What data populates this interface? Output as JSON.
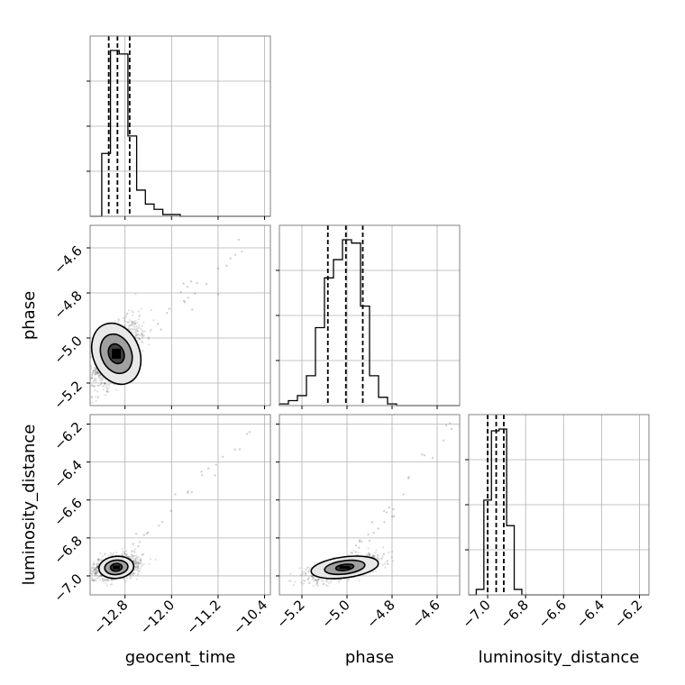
{
  "chart_data": {
    "type": "corner",
    "parameters": [
      {
        "name": "geocent_time",
        "label": "geocent_time",
        "range": [
          -13.4,
          -10.3
        ],
        "ticks": [
          -12.8,
          -12.0,
          -11.2,
          -10.4
        ],
        "tick_labels": [
          "−12.8",
          "−12.0",
          "−11.2",
          "−10.4"
        ],
        "quantiles": [
          -13.08,
          -12.93,
          -12.72
        ],
        "hist": {
          "bin_edges": [
            -13.4,
            -13.2,
            -13.05,
            -12.9,
            -12.75,
            -12.6,
            -12.45,
            -12.3,
            -12.15,
            -12.0,
            -11.85,
            -11.7
          ],
          "counts": [
            0.0,
            0.36,
            0.95,
            0.93,
            0.46,
            0.15,
            0.07,
            0.04,
            0.01,
            0.01,
            0.0
          ]
        }
      },
      {
        "name": "phase",
        "label": "phase",
        "range": [
          -5.3,
          -4.5
        ],
        "ticks": [
          -5.2,
          -5.0,
          -4.8,
          -4.6
        ],
        "tick_labels": [
          "−5.2",
          "−5.0",
          "−4.8",
          "−4.6"
        ],
        "quantiles": [
          -5.085,
          -5.005,
          -4.93
        ],
        "hist": {
          "bin_edges": [
            -5.3,
            -5.26,
            -5.22,
            -5.18,
            -5.14,
            -5.1,
            -5.06,
            -5.02,
            -4.98,
            -4.94,
            -4.9,
            -4.86,
            -4.82,
            -4.78,
            -4.74
          ],
          "counts": [
            0.01,
            0.03,
            0.06,
            0.18,
            0.47,
            0.77,
            0.88,
            1.0,
            0.98,
            0.6,
            0.18,
            0.05,
            0.01,
            0.0
          ]
        }
      },
      {
        "name": "luminosity_distance",
        "label": "luminosity_distance",
        "range": [
          -7.1,
          -6.15
        ],
        "ticks": [
          -7.0,
          -6.8,
          -6.6,
          -6.4,
          -6.2
        ],
        "tick_labels": [
          "−7.0",
          "−6.8",
          "−6.6",
          "−6.4",
          "−6.2"
        ],
        "quantiles": [
          -7.0,
          -6.955,
          -6.915
        ],
        "hist": {
          "bin_edges": [
            -7.1,
            -7.06,
            -7.02,
            -6.98,
            -6.94,
            -6.9,
            -6.86,
            -6.82,
            -6.78,
            -6.74
          ],
          "counts": [
            0.0,
            0.03,
            0.52,
            0.9,
            0.91,
            0.38,
            0.03,
            0.0,
            0.0
          ]
        }
      }
    ],
    "pairs": [
      {
        "x": "geocent_time",
        "y": "phase",
        "center": [
          -12.95,
          -5.07
        ],
        "spread": [
          0.2,
          0.07
        ],
        "corr": 0.55,
        "contours": [
          [
            0.13,
            0.045
          ],
          [
            0.26,
            0.09
          ],
          [
            0.4,
            0.14
          ]
        ]
      },
      {
        "x": "geocent_time",
        "y": "luminosity_distance",
        "center": [
          -12.95,
          -6.955
        ],
        "spread": [
          0.18,
          0.03
        ],
        "corr": 0.3,
        "contours": [
          [
            0.1,
            0.02
          ],
          [
            0.2,
            0.038
          ],
          [
            0.3,
            0.058
          ]
        ]
      },
      {
        "x": "phase",
        "y": "luminosity_distance",
        "center": [
          -5.01,
          -6.955
        ],
        "spread": [
          0.07,
          0.03
        ],
        "corr": 0.6,
        "contours": [
          [
            0.04,
            0.016
          ],
          [
            0.09,
            0.035
          ],
          [
            0.15,
            0.055
          ]
        ]
      }
    ],
    "grid": true
  }
}
